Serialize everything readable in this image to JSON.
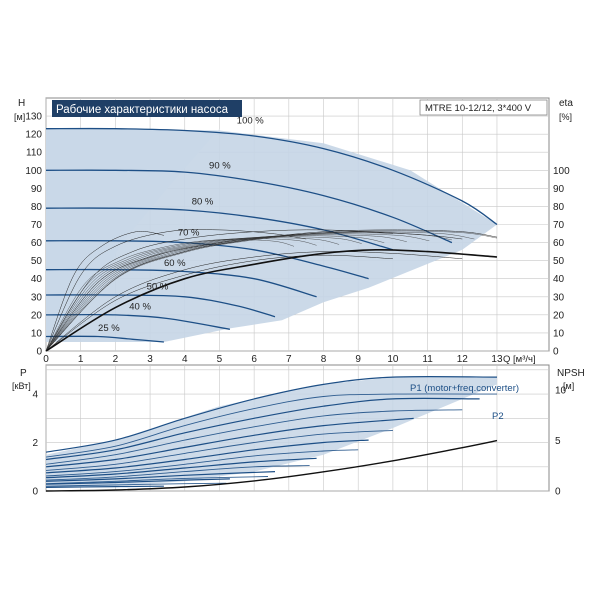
{
  "header": {
    "title": "Рабочие характеристики насоса",
    "model": "MTRE 10-12/12, 3*400 V"
  },
  "colors": {
    "curve": "#1d4f86",
    "band": "#c5d5e5",
    "band_light": "#e8f0f8",
    "grid": "#c8c8c8",
    "title_bg": "#1f3f66"
  },
  "chart_data": [
    {
      "type": "line",
      "name": "pump-curves",
      "xlabel": "Q [м³/ч]",
      "ylabel_left_top": "H",
      "ylabel_left_unit": "[м]",
      "ylabel_right_top": "eta",
      "ylabel_right_unit": "[%]",
      "xlim": [
        0,
        14.5
      ],
      "ylim": [
        0,
        140
      ],
      "x_ticks": [
        0,
        1,
        2,
        3,
        4,
        5,
        6,
        7,
        8,
        9,
        10,
        11,
        12,
        13
      ],
      "y_ticks": [
        0,
        10,
        20,
        30,
        40,
        50,
        60,
        70,
        80,
        90,
        100,
        110,
        120,
        130
      ],
      "eta_ticks": [
        0,
        10,
        20,
        30,
        40,
        50,
        60,
        70,
        80,
        90,
        100
      ],
      "speed_labels": [
        {
          "text": "100 %",
          "x": 5.5,
          "y": 126
        },
        {
          "text": "90 %",
          "x": 4.7,
          "y": 101
        },
        {
          "text": "80 %",
          "x": 4.2,
          "y": 81
        },
        {
          "text": "70 %",
          "x": 3.8,
          "y": 64
        },
        {
          "text": "60 %",
          "x": 3.4,
          "y": 47
        },
        {
          "text": "50 %",
          "x": 2.9,
          "y": 34
        },
        {
          "text": "40 %",
          "x": 2.4,
          "y": 23
        },
        {
          "text": "25 %",
          "x": 1.5,
          "y": 11
        }
      ],
      "band_outline": [
        [
          0,
          123
        ],
        [
          5,
          122
        ],
        [
          8,
          115
        ],
        [
          10.5,
          100
        ],
        [
          13,
          70
        ],
        [
          12,
          56
        ],
        [
          9.3,
          35
        ],
        [
          8,
          27
        ],
        [
          6.8,
          17
        ],
        [
          5.3,
          12.5
        ],
        [
          3.4,
          5
        ],
        [
          0,
          5
        ]
      ],
      "band_light_outline": [
        [
          0,
          123
        ],
        [
          5,
          122
        ],
        [
          5,
          123
        ],
        [
          3.5,
          90
        ],
        [
          2.2,
          60
        ],
        [
          1.2,
          28
        ],
        [
          0,
          5
        ]
      ],
      "head_curves": [
        {
          "speed": "100 %",
          "points": [
            [
              0,
              123
            ],
            [
              2,
              123
            ],
            [
              4,
              122
            ],
            [
              6,
              119
            ],
            [
              8,
              112
            ],
            [
              10,
              100
            ],
            [
              12,
              83
            ],
            [
              13,
              70
            ]
          ]
        },
        {
          "speed": "90 %",
          "points": [
            [
              0,
              100
            ],
            [
              2,
              100
            ],
            [
              4,
              99
            ],
            [
              6,
              94
            ],
            [
              8,
              86
            ],
            [
              10,
              74
            ],
            [
              11.7,
              60
            ]
          ]
        },
        {
          "speed": "80 %",
          "points": [
            [
              0,
              79
            ],
            [
              2,
              79
            ],
            [
              4,
              78
            ],
            [
              6,
              74
            ],
            [
              8,
              67
            ],
            [
              10,
              56
            ]
          ]
        },
        {
          "speed": "70 %",
          "points": [
            [
              0,
              61
            ],
            [
              2,
              61
            ],
            [
              4,
              60
            ],
            [
              6,
              56
            ],
            [
              8,
              47
            ],
            [
              9.3,
              40
            ]
          ]
        },
        {
          "speed": "60 %",
          "points": [
            [
              0,
              45
            ],
            [
              2,
              45
            ],
            [
              4,
              44
            ],
            [
              6,
              40
            ],
            [
              7.8,
              30
            ]
          ]
        },
        {
          "speed": "50 %",
          "points": [
            [
              0,
              31
            ],
            [
              2,
              31
            ],
            [
              4,
              30
            ],
            [
              5.5,
              25
            ],
            [
              6.6,
              19
            ]
          ]
        },
        {
          "speed": "40 %",
          "points": [
            [
              0,
              20
            ],
            [
              2,
              20
            ],
            [
              3.5,
              18
            ],
            [
              5.3,
              12
            ]
          ]
        },
        {
          "speed": "25 %",
          "points": [
            [
              0,
              8
            ],
            [
              1.5,
              8
            ],
            [
              2.5,
              6.5
            ],
            [
              3.4,
              5
            ]
          ]
        }
      ],
      "eta_curves": [
        {
          "points": [
            [
              0,
              0
            ],
            [
              2,
              40
            ],
            [
              4,
              55
            ],
            [
              6,
              62
            ],
            [
              8,
              66
            ],
            [
              10,
              67
            ],
            [
              12,
              66
            ],
            [
              13,
              63
            ]
          ]
        },
        {
          "points": [
            [
              0,
              0
            ],
            [
              1.5,
              38
            ],
            [
              3,
              52
            ],
            [
              5,
              60
            ],
            [
              7,
              64
            ],
            [
              9,
              66
            ],
            [
              11,
              64
            ],
            [
              12,
              62
            ]
          ]
        },
        {
          "points": [
            [
              0,
              0
            ],
            [
              1.3,
              40
            ],
            [
              2.5,
              55
            ],
            [
              4,
              62
            ],
            [
              6,
              66
            ],
            [
              8,
              67
            ],
            [
              10,
              65
            ]
          ]
        },
        {
          "points": [
            [
              0,
              0
            ],
            [
              1,
              42
            ],
            [
              2,
              58
            ],
            [
              3.5,
              66
            ],
            [
              5,
              67
            ],
            [
              6.5,
              65
            ],
            [
              7.5,
              62
            ]
          ]
        },
        {
          "points": [
            [
              0,
              0
            ],
            [
              0.8,
              42
            ],
            [
              1.6,
              58
            ],
            [
              2.6,
              66
            ],
            [
              3.4,
              64
            ]
          ]
        },
        {
          "points": [
            [
              0,
              0
            ],
            [
              2,
              30
            ],
            [
              4,
              45
            ],
            [
              6,
              52
            ],
            [
              8,
              55
            ],
            [
              10,
              54
            ],
            [
              12,
              51
            ]
          ]
        },
        {
          "points": [
            [
              0,
              0
            ],
            [
              2,
              28
            ],
            [
              4,
              42
            ],
            [
              6,
              50
            ],
            [
              8,
              53
            ],
            [
              10,
              51
            ]
          ]
        }
      ],
      "eta_envelope": {
        "points": [
          [
            0,
            0
          ],
          [
            2,
            24
          ],
          [
            4,
            40
          ],
          [
            6,
            48
          ],
          [
            8,
            54
          ],
          [
            9.5,
            56
          ],
          [
            11,
            55
          ],
          [
            13,
            52
          ]
        ]
      }
    },
    {
      "type": "line",
      "name": "power-npsh-curves",
      "ylabel_left_top": "P",
      "ylabel_left_unit": "[кВт]",
      "ylabel_right_top": "NPSH",
      "ylabel_right_unit": "[м]",
      "xlim": [
        0,
        14.5
      ],
      "ylim": [
        0,
        5.2
      ],
      "p_ticks": [
        0,
        2,
        4
      ],
      "npsh_ticks": [
        0,
        5,
        10
      ],
      "series_labels": [
        "P1 (motor+freq.converter)",
        "P2"
      ],
      "band_outline": [
        [
          0,
          1.5
        ],
        [
          2,
          2.1
        ],
        [
          5,
          3.5
        ],
        [
          8,
          4.4
        ],
        [
          10,
          4.7
        ],
        [
          13,
          4.7
        ],
        [
          13,
          4.4
        ],
        [
          11.5,
          3.5
        ],
        [
          10,
          2.6
        ],
        [
          8,
          1.5
        ],
        [
          6,
          0.8
        ],
        [
          4,
          0.4
        ],
        [
          2,
          0.2
        ],
        [
          0,
          0.15
        ]
      ],
      "p1_curves": [
        {
          "points": [
            [
              0,
              1.6
            ],
            [
              2,
              2.1
            ],
            [
              4,
              3.0
            ],
            [
              6,
              3.8
            ],
            [
              8,
              4.4
            ],
            [
              10,
              4.7
            ],
            [
              13,
              4.7
            ]
          ]
        },
        {
          "points": [
            [
              0,
              1.3
            ],
            [
              2,
              1.7
            ],
            [
              4,
              2.4
            ],
            [
              6,
              3.0
            ],
            [
              8,
              3.5
            ],
            [
              10,
              3.8
            ],
            [
              12.5,
              3.8
            ]
          ]
        },
        {
          "points": [
            [
              0,
              1.0
            ],
            [
              2,
              1.3
            ],
            [
              4,
              1.8
            ],
            [
              6,
              2.3
            ],
            [
              8,
              2.7
            ],
            [
              10.6,
              3.0
            ]
          ]
        },
        {
          "points": [
            [
              0,
              0.75
            ],
            [
              2,
              0.95
            ],
            [
              4,
              1.3
            ],
            [
              6,
              1.7
            ],
            [
              8,
              2.0
            ],
            [
              9.3,
              2.1
            ]
          ]
        },
        {
          "points": [
            [
              0,
              0.55
            ],
            [
              2,
              0.7
            ],
            [
              4,
              0.95
            ],
            [
              6,
              1.2
            ],
            [
              7.8,
              1.35
            ]
          ]
        },
        {
          "points": [
            [
              0,
              0.4
            ],
            [
              2,
              0.5
            ],
            [
              4,
              0.65
            ],
            [
              6.6,
              0.8
            ]
          ]
        },
        {
          "points": [
            [
              0,
              0.28
            ],
            [
              2,
              0.35
            ],
            [
              4,
              0.45
            ],
            [
              5.3,
              0.5
            ]
          ]
        },
        {
          "points": [
            [
              0,
              0.15
            ],
            [
              2,
              0.18
            ],
            [
              3.4,
              0.2
            ]
          ]
        }
      ],
      "p2_curves": [
        {
          "points": [
            [
              0,
              1.4
            ],
            [
              2,
              1.85
            ],
            [
              4,
              2.7
            ],
            [
              6,
              3.4
            ],
            [
              8,
              3.9
            ],
            [
              10,
              4.0
            ],
            [
              13,
              4.0
            ]
          ]
        },
        {
          "points": [
            [
              0,
              1.1
            ],
            [
              2,
              1.5
            ],
            [
              4,
              2.1
            ],
            [
              6,
              2.65
            ],
            [
              8,
              3.1
            ],
            [
              10,
              3.3
            ],
            [
              12,
              3.35
            ]
          ]
        },
        {
          "points": [
            [
              0,
              0.85
            ],
            [
              2,
              1.1
            ],
            [
              4,
              1.55
            ],
            [
              6,
              2.0
            ],
            [
              8,
              2.35
            ],
            [
              10,
              2.5
            ]
          ]
        },
        {
          "points": [
            [
              0,
              0.62
            ],
            [
              2,
              0.8
            ],
            [
              4,
              1.1
            ],
            [
              6,
              1.45
            ],
            [
              8,
              1.65
            ],
            [
              9,
              1.7
            ]
          ]
        },
        {
          "points": [
            [
              0,
              0.45
            ],
            [
              2,
              0.58
            ],
            [
              4,
              0.8
            ],
            [
              6,
              1.0
            ],
            [
              7.6,
              1.05
            ]
          ]
        },
        {
          "points": [
            [
              0,
              0.3
            ],
            [
              2,
              0.4
            ],
            [
              4,
              0.52
            ],
            [
              6.4,
              0.6
            ]
          ]
        },
        {
          "points": [
            [
              0,
              0.2
            ],
            [
              2,
              0.25
            ],
            [
              4,
              0.3
            ],
            [
              5.2,
              0.32
            ]
          ]
        }
      ],
      "npsh_curve": {
        "points": [
          [
            0,
            0
          ],
          [
            2,
            0.1
          ],
          [
            4,
            0.4
          ],
          [
            6,
            1.0
          ],
          [
            8,
            1.9
          ],
          [
            10,
            3.0
          ],
          [
            12,
            4.3
          ],
          [
            13,
            5.0
          ]
        ]
      }
    }
  ]
}
